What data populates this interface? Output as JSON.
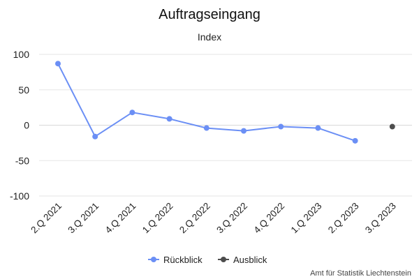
{
  "chart_data": {
    "type": "line",
    "title": "Auftragseingang",
    "subtitle": "Index",
    "categories": [
      "2.Q 2021",
      "3.Q 2021",
      "4.Q 2021",
      "1.Q 2022",
      "2.Q 2022",
      "3.Q 2022",
      "4.Q 2022",
      "1.Q 2023",
      "2.Q 2023",
      "3.Q 2023"
    ],
    "ylim": [
      -100,
      100
    ],
    "yticks": [
      100,
      50,
      0,
      -50,
      -100
    ],
    "grid": true,
    "legend_position": "bottom",
    "series": [
      {
        "name": "Rückblick",
        "color": "#6b8ff5",
        "values": [
          87,
          -16,
          18,
          9,
          -4,
          -8,
          -2,
          -4,
          -22,
          null
        ]
      },
      {
        "name": "Ausblick",
        "color": "#4d4d4d",
        "values": [
          null,
          null,
          null,
          null,
          null,
          null,
          null,
          null,
          null,
          -2
        ]
      }
    ]
  },
  "credit": "Amt für Statistik Liechtenstein"
}
